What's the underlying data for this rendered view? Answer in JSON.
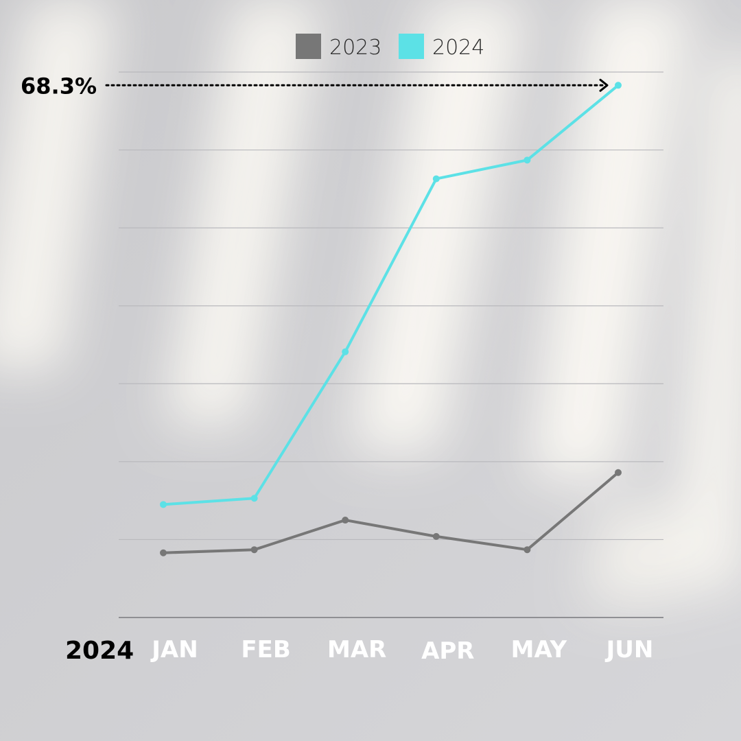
{
  "chart_data": {
    "type": "line",
    "categories": [
      "JAN",
      "FEB",
      "MAR",
      "APR",
      "MAY",
      "JUN"
    ],
    "series": [
      {
        "name": "2023",
        "color": "#777777",
        "values": [
          8.3,
          8.7,
          12.5,
          10.4,
          8.7,
          18.6
        ]
      },
      {
        "name": "2024",
        "color": "#5ce1e6",
        "values": [
          14.5,
          15.3,
          34.1,
          56.3,
          58.7,
          68.3
        ]
      }
    ],
    "ylim": [
      0,
      70
    ],
    "grid": true,
    "legend_position": "top-center",
    "xlabel": "2024",
    "ylabel": "",
    "annotation": {
      "text": "68.3%",
      "series": "2024",
      "category": "JUN"
    }
  }
}
